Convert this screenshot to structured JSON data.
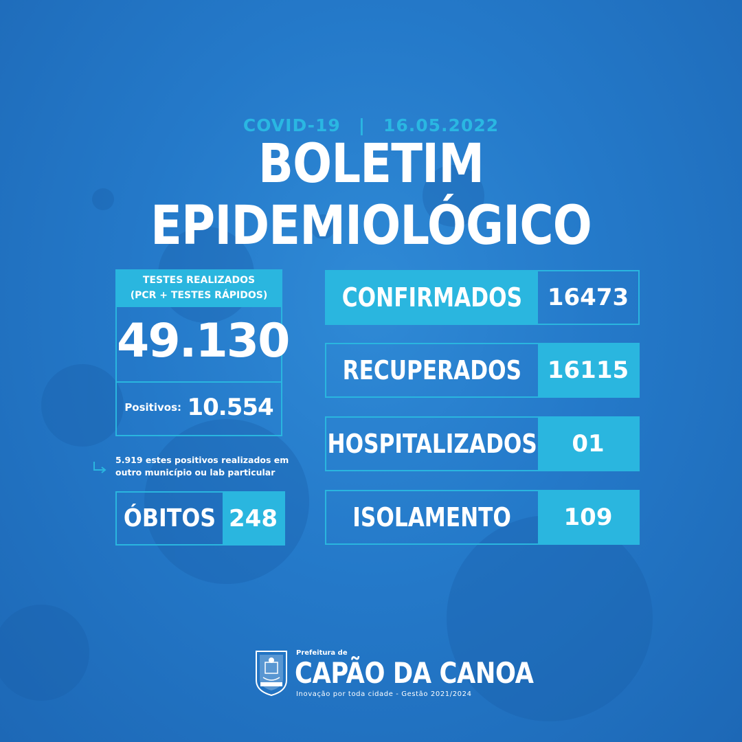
{
  "header": {
    "topic": "COVID-19",
    "separator": "|",
    "date": "16.05.2022",
    "title": "BOLETIM EPIDEMIOLÓGICO"
  },
  "tests": {
    "heading_line1": "TESTES REALIZADOS",
    "heading_line2": "(PCR + TESTES RÁPIDOS)",
    "total": "49.130",
    "positives_label": "Positivos:",
    "positives_value": "10.554",
    "note_line1": "5.919 estes positivos realizados em",
    "note_line2": "outro município ou lab particular"
  },
  "obitos": {
    "label": "ÓBITOS",
    "value": "248"
  },
  "stats": [
    {
      "label": "CONFIRMADOS",
      "value": "16473"
    },
    {
      "label": "RECUPERADOS",
      "value": "16115"
    },
    {
      "label": "HOSPITALIZADOS",
      "value": "01"
    },
    {
      "label": "ISOLAMENTO",
      "value": "109"
    }
  ],
  "footer": {
    "prefix": "Prefeitura de",
    "city": "CAPÃO DA CANOA",
    "tagline": "Inovação por toda cidade -  Gestão 2021/2024",
    "emblem_text": "CAPÃO DA CANOA"
  },
  "colors": {
    "background": "#2479c9",
    "accent": "#2ab6df",
    "text": "#ffffff"
  },
  "icons": {
    "note_arrow": "arrow-turn-right-icon",
    "emblem": "city-coat-of-arms"
  }
}
